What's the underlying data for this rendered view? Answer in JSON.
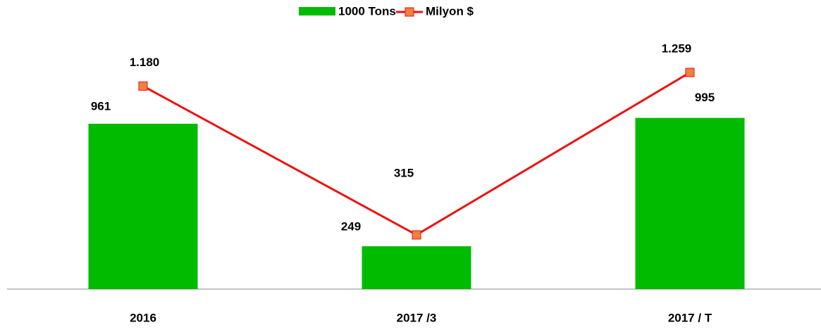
{
  "chart_data": {
    "type": "bar_line",
    "categories": [
      "2016",
      "2017 /3",
      "2017 / T"
    ],
    "series": [
      {
        "name": "1000 Tons",
        "type": "bar",
        "color": "#00bb00",
        "values": [
          961,
          249,
          995
        ]
      },
      {
        "name": "Milyon $",
        "type": "line",
        "color": "#ee1111",
        "marker_color": "#f08040",
        "values": [
          1180,
          315,
          1259
        ],
        "value_labels": [
          "1.180",
          "315",
          "1.259"
        ]
      }
    ],
    "ylim": [
      0,
      1300
    ],
    "legend": "top"
  }
}
